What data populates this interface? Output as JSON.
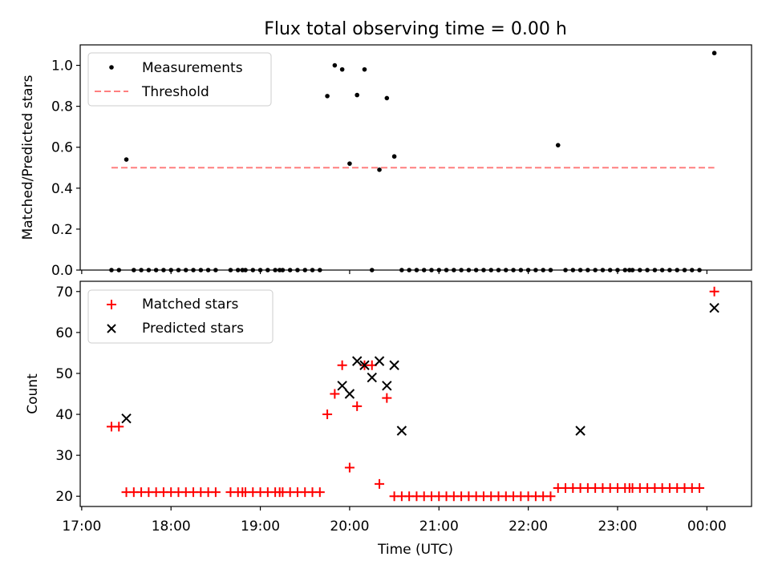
{
  "chart_data": [
    {
      "type": "scatter",
      "title": "Flux total observing time = 0.00 h",
      "xlabel": "",
      "ylabel": "Matched/Predicted stars",
      "ylim": [
        0,
        1.1
      ],
      "xlim": [
        "16:59",
        "00:30"
      ],
      "yticks": [
        "0.0",
        "0.2",
        "0.4",
        "0.6",
        "0.8",
        "1.0"
      ],
      "grid": false,
      "legend_position": "top-left",
      "series": [
        {
          "name": "Measurements",
          "marker": "dot",
          "color": "#000000",
          "x": [
            "17:20",
            "17:25",
            "17:30",
            "17:35",
            "17:40",
            "17:45",
            "17:50",
            "17:55",
            "18:00",
            "18:05",
            "18:10",
            "18:15",
            "18:20",
            "18:25",
            "18:30",
            "18:40",
            "18:45",
            "18:48",
            "18:50",
            "18:55",
            "19:00",
            "19:05",
            "19:10",
            "19:13",
            "19:15",
            "19:20",
            "19:25",
            "19:30",
            "19:35",
            "19:40",
            "19:45",
            "19:50",
            "19:55",
            "20:00",
            "20:05",
            "20:10",
            "20:15",
            "20:20",
            "20:25",
            "20:30",
            "20:35",
            "20:40",
            "20:45",
            "20:50",
            "20:55",
            "21:00",
            "21:05",
            "21:10",
            "21:15",
            "21:20",
            "21:25",
            "21:30",
            "21:35",
            "21:40",
            "21:45",
            "21:50",
            "21:55",
            "22:00",
            "22:05",
            "22:10",
            "22:15",
            "22:20",
            "22:25",
            "22:30",
            "22:35",
            "22:40",
            "22:45",
            "22:50",
            "22:55",
            "23:00",
            "23:05",
            "23:08",
            "23:10",
            "23:15",
            "23:20",
            "23:25",
            "23:30",
            "23:35",
            "23:40",
            "23:45",
            "23:50",
            "23:55",
            "00:05"
          ],
          "y": [
            0,
            0,
            0.54,
            0,
            0,
            0,
            0,
            0,
            0,
            0,
            0,
            0,
            0,
            0,
            0,
            0,
            0,
            0,
            0,
            0,
            0,
            0,
            0,
            0,
            0,
            0,
            0,
            0,
            0,
            0,
            0.85,
            1.0,
            0.98,
            0.52,
            0.855,
            0.98,
            0,
            0.49,
            0.84,
            0.555,
            0,
            0,
            0,
            0,
            0,
            0,
            0,
            0,
            0,
            0,
            0,
            0,
            0,
            0,
            0,
            0,
            0,
            0,
            0,
            0,
            0,
            0.61,
            0,
            0,
            0,
            0,
            0,
            0,
            0,
            0,
            0,
            0,
            0,
            0,
            0,
            0,
            0,
            0,
            0,
            0,
            0,
            0,
            1.06
          ]
        },
        {
          "name": "Threshold",
          "style": "dashed",
          "color": "#ff7f7f",
          "x": [
            "17:20",
            "00:05"
          ],
          "y": [
            0.5,
            0.5
          ]
        }
      ]
    },
    {
      "type": "scatter",
      "title": "",
      "xlabel": "Time (UTC)",
      "ylabel": "Count",
      "ylim": [
        17.5,
        72.5
      ],
      "xlim": [
        "16:59",
        "00:30"
      ],
      "xticks": [
        "17:00",
        "18:00",
        "19:00",
        "20:00",
        "21:00",
        "22:00",
        "23:00",
        "00:00"
      ],
      "yticks": [
        "20",
        "30",
        "40",
        "50",
        "60",
        "70"
      ],
      "grid": false,
      "legend_position": "top-left",
      "series": [
        {
          "name": "Matched stars",
          "marker": "plus",
          "color": "#ff0000",
          "x": [
            "17:20",
            "17:25",
            "17:30",
            "17:35",
            "17:40",
            "17:45",
            "17:50",
            "17:55",
            "18:00",
            "18:05",
            "18:10",
            "18:15",
            "18:20",
            "18:25",
            "18:30",
            "18:40",
            "18:45",
            "18:48",
            "18:50",
            "18:55",
            "19:00",
            "19:05",
            "19:10",
            "19:13",
            "19:15",
            "19:20",
            "19:25",
            "19:30",
            "19:35",
            "19:40",
            "19:45",
            "19:50",
            "19:55",
            "20:00",
            "20:05",
            "20:10",
            "20:15",
            "20:20",
            "20:25",
            "20:30",
            "20:35",
            "20:40",
            "20:45",
            "20:50",
            "20:55",
            "21:00",
            "21:05",
            "21:10",
            "21:15",
            "21:20",
            "21:25",
            "21:30",
            "21:35",
            "21:40",
            "21:45",
            "21:50",
            "21:55",
            "22:00",
            "22:05",
            "22:10",
            "22:15",
            "22:20",
            "22:25",
            "22:30",
            "22:35",
            "22:40",
            "22:45",
            "22:50",
            "22:55",
            "23:00",
            "23:05",
            "23:08",
            "23:10",
            "23:15",
            "23:20",
            "23:25",
            "23:30",
            "23:35",
            "23:40",
            "23:45",
            "23:50",
            "23:55",
            "00:05"
          ],
          "y": [
            37,
            37,
            21,
            21,
            21,
            21,
            21,
            21,
            21,
            21,
            21,
            21,
            21,
            21,
            21,
            21,
            21,
            21,
            21,
            21,
            21,
            21,
            21,
            21,
            21,
            21,
            21,
            21,
            21,
            21,
            40,
            45,
            52,
            27,
            42,
            52,
            52,
            23,
            44,
            20,
            20,
            20,
            20,
            20,
            20,
            20,
            20,
            20,
            20,
            20,
            20,
            20,
            20,
            20,
            20,
            20,
            20,
            20,
            20,
            20,
            20,
            22,
            22,
            22,
            22,
            22,
            22,
            22,
            22,
            22,
            22,
            22,
            22,
            22,
            22,
            22,
            22,
            22,
            22,
            22,
            22,
            22,
            70
          ]
        },
        {
          "name": "Predicted stars",
          "marker": "x",
          "color": "#000000",
          "x": [
            "17:30",
            "19:55",
            "20:00",
            "20:05",
            "20:10",
            "20:15",
            "20:20",
            "20:25",
            "20:30",
            "20:35",
            "22:35",
            "00:05"
          ],
          "y": [
            39,
            47,
            45,
            53,
            52,
            49,
            53,
            47,
            52,
            36,
            36,
            66
          ]
        }
      ]
    }
  ]
}
